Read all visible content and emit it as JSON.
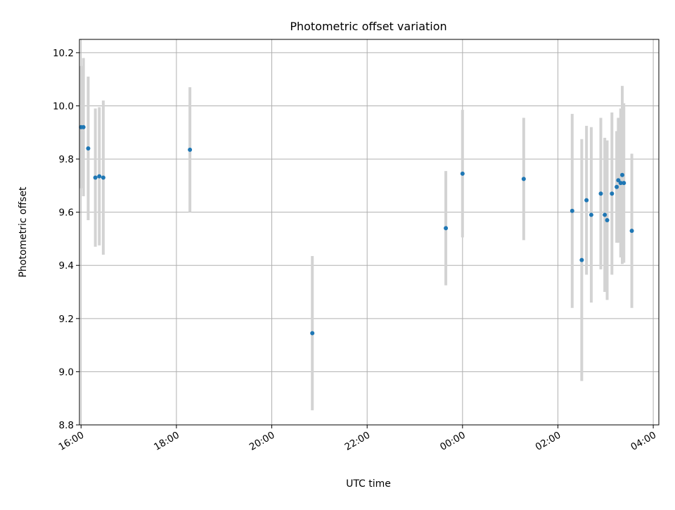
{
  "colors": {
    "point": "#1f77b4",
    "errorbar": "#d3d3d3",
    "grid": "#b0b0b0",
    "axis": "#000000",
    "background": "#ffffff"
  },
  "chart_data": {
    "type": "scatter",
    "title": "Photometric offset variation",
    "xlabel": "UTC time",
    "ylabel": "Photometric offset",
    "x_unit": "hours (UTC)",
    "xlim": [
      "15:58",
      "04:07"
    ],
    "ylim": [
      8.8,
      10.25
    ],
    "x_ticks": [
      {
        "value": "16:00",
        "label": "16:00"
      },
      {
        "value": "18:00",
        "label": "18:00"
      },
      {
        "value": "20:00",
        "label": "20:00"
      },
      {
        "value": "22:00",
        "label": "22:00"
      },
      {
        "value": "00:00",
        "label": "00:00"
      },
      {
        "value": "02:00",
        "label": "02:00"
      },
      {
        "value": "04:00",
        "label": "04:00"
      }
    ],
    "y_ticks": [
      {
        "value": 8.8,
        "label": "8.8"
      },
      {
        "value": 9.0,
        "label": "9.0"
      },
      {
        "value": 9.2,
        "label": "9.2"
      },
      {
        "value": 9.4,
        "label": "9.4"
      },
      {
        "value": 9.6,
        "label": "9.6"
      },
      {
        "value": 9.8,
        "label": "9.8"
      },
      {
        "value": 10.0,
        "label": "10.0"
      },
      {
        "value": 10.2,
        "label": "10.2"
      }
    ],
    "grid": true,
    "points": [
      {
        "x": "16:00",
        "y": 9.92,
        "err": 0.23
      },
      {
        "x": "16:03",
        "y": 9.92,
        "err": 0.26
      },
      {
        "x": "16:09",
        "y": 9.84,
        "err": 0.27
      },
      {
        "x": "16:18",
        "y": 9.73,
        "err": 0.26
      },
      {
        "x": "16:23",
        "y": 9.735,
        "err": 0.26
      },
      {
        "x": "16:28",
        "y": 9.73,
        "err": 0.29
      },
      {
        "x": "18:17",
        "y": 9.835,
        "err": 0.235
      },
      {
        "x": "20:51",
        "y": 9.145,
        "err": 0.29
      },
      {
        "x": "23:39",
        "y": 9.54,
        "err": 0.215
      },
      {
        "x": "00:00",
        "y": 9.745,
        "err": 0.24
      },
      {
        "x": "01:17",
        "y": 9.725,
        "err": 0.23
      },
      {
        "x": "02:18",
        "y": 9.605,
        "err": 0.365
      },
      {
        "x": "02:30",
        "y": 9.42,
        "err": 0.455
      },
      {
        "x": "02:36",
        "y": 9.645,
        "err": 0.28
      },
      {
        "x": "02:42",
        "y": 9.59,
        "err": 0.33
      },
      {
        "x": "02:54",
        "y": 9.67,
        "err": 0.285
      },
      {
        "x": "02:59",
        "y": 9.59,
        "err": 0.29
      },
      {
        "x": "03:02",
        "y": 9.57,
        "err": 0.3
      },
      {
        "x": "03:08",
        "y": 9.67,
        "err": 0.305
      },
      {
        "x": "03:14",
        "y": 9.695,
        "err": 0.21
      },
      {
        "x": "03:16",
        "y": 9.72,
        "err": 0.235
      },
      {
        "x": "03:19",
        "y": 9.71,
        "err": 0.28
      },
      {
        "x": "03:21",
        "y": 9.74,
        "err": 0.335
      },
      {
        "x": "03:23",
        "y": 9.71,
        "err": 0.3
      },
      {
        "x": "03:33",
        "y": 9.53,
        "err": 0.29
      }
    ]
  }
}
